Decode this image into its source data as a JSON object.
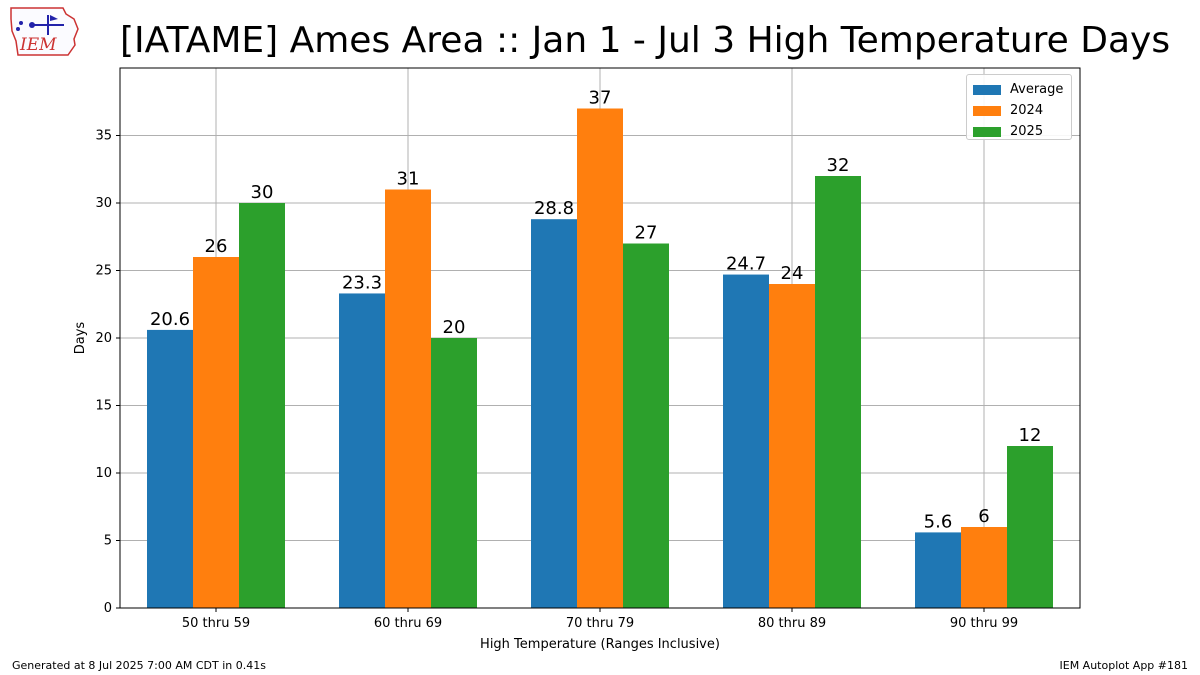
{
  "logo_text": "IEM",
  "title": "[IATAME] Ames Area :: Jan 1 - Jul 3 High Temperature Days",
  "footer": {
    "left": "Generated at 8 Jul 2025 7:00 AM CDT in 0.41s",
    "right": "IEM Autoplot App #181"
  },
  "chart_data": {
    "type": "bar",
    "xlabel": "High Temperature (Ranges Inclusive)",
    "ylabel": "Days",
    "ylim": [
      0,
      40
    ],
    "yticks": [
      0,
      5,
      10,
      15,
      20,
      25,
      30,
      35
    ],
    "grid": true,
    "legend_position": "top-right",
    "categories": [
      "50 thru 59",
      "60 thru 69",
      "70 thru 79",
      "80 thru 89",
      "90 thru 99"
    ],
    "series": [
      {
        "name": "Average",
        "color": "#1f77b4",
        "values": [
          20.6,
          23.3,
          28.8,
          24.7,
          5.6
        ],
        "labels": [
          "20.6",
          "23.3",
          "28.8",
          "24.7",
          "5.6"
        ]
      },
      {
        "name": "2024",
        "color": "#ff7f0e",
        "values": [
          26,
          31,
          37,
          24,
          6
        ],
        "labels": [
          "26",
          "31",
          "37",
          "24",
          "6"
        ]
      },
      {
        "name": "2025",
        "color": "#2ca02c",
        "values": [
          30,
          20,
          27,
          32,
          12
        ],
        "labels": [
          "30",
          "20",
          "27",
          "32",
          "12"
        ]
      }
    ]
  }
}
